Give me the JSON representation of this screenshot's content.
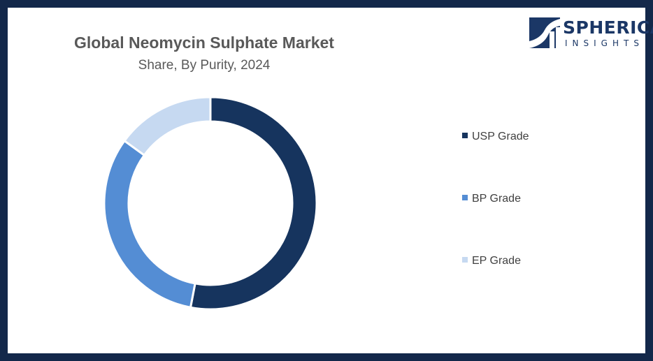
{
  "logo": {
    "name": "SPHERICAL",
    "tagline": "INSIGHTS",
    "color": "#1b3766"
  },
  "chart_data": {
    "type": "pie",
    "variant": "donut",
    "title": "Global Neomycin Sulphate Market",
    "subtitle": "Share, By Purity, 2024",
    "categories": [
      "USP Grade",
      "BP Grade",
      "EP Grade"
    ],
    "values": [
      53,
      32,
      15
    ],
    "colors": [
      "#16345e",
      "#548dd4",
      "#c6d9f1"
    ],
    "legend_position": "right"
  }
}
